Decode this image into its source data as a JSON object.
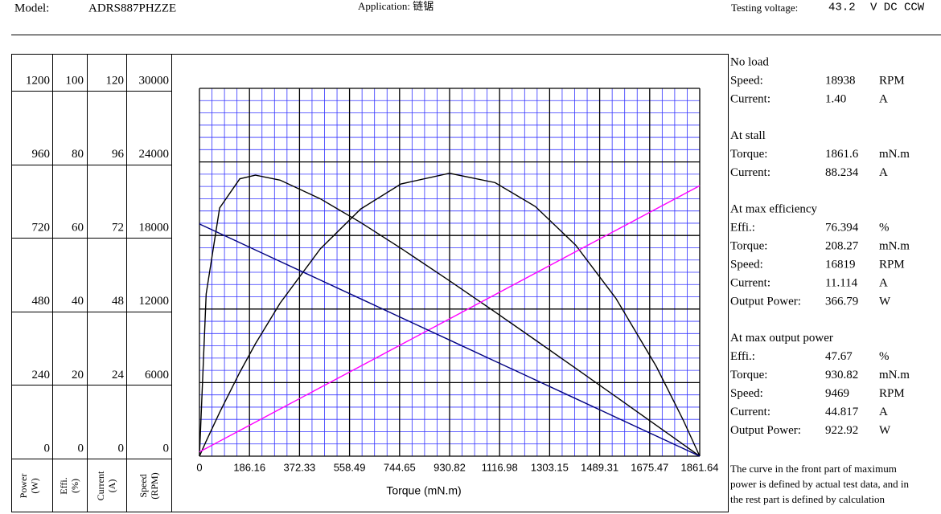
{
  "header": {
    "model_label": "Model:",
    "model": "ADRS887PHZZE",
    "application": "Application: 链锯",
    "voltage_label": "Testing voltage:",
    "voltage": "43.2",
    "voltage_unit": "V DC CCW"
  },
  "chart_data": {
    "type": "line",
    "xlabel": "Torque (mN.m)",
    "xlim": [
      0,
      1861.64
    ],
    "xticks": [
      0,
      186.16,
      372.33,
      558.49,
      744.65,
      930.82,
      1116.98,
      1303.15,
      1489.31,
      1675.47,
      1861.64
    ],
    "axes": [
      {
        "title": "Power",
        "unit": "(W)",
        "ylim": [
          0,
          1200
        ],
        "yticks": [
          0,
          240,
          480,
          720,
          960,
          1200
        ]
      },
      {
        "title": "Effi.",
        "unit": "(%)",
        "ylim": [
          0,
          100
        ],
        "yticks": [
          0,
          20,
          40,
          60,
          80,
          100
        ]
      },
      {
        "title": "Current",
        "unit": "(A)",
        "ylim": [
          0,
          120
        ],
        "yticks": [
          0,
          24,
          48,
          72,
          96,
          120
        ]
      },
      {
        "title": "Speed",
        "unit": "(RPM)",
        "ylim": [
          0,
          30000
        ],
        "yticks": [
          0,
          6000,
          12000,
          18000,
          24000,
          30000
        ]
      }
    ],
    "x": [
      0,
      25,
      75,
      150,
      208.27,
      300,
      450,
      600,
      750,
      930.82,
      1100,
      1250,
      1400,
      1550,
      1700,
      1800,
      1861.64
    ],
    "series": [
      {
        "name": "Power",
        "axis": 0,
        "color": "#000000",
        "values": [
          0,
          48.91,
          142.75,
          273.51,
          366.79,
          499.08,
          676.71,
          806.41,
          888.17,
          922.92,
          892.51,
          814.47,
          688.51,
          514.59,
          292.74,
          118.21,
          0
        ]
      },
      {
        "name": "Efficiency",
        "axis": 1,
        "color": "#000000",
        "values": [
          0,
          44.12,
          67.47,
          75.4,
          76.394,
          75.05,
          69.96,
          63.52,
          56.51,
          47.67,
          39.2,
          31.58,
          23.89,
          16.16,
          8.4,
          3.21,
          0
        ]
      },
      {
        "name": "Current",
        "axis": 2,
        "color": "#ff00ff",
        "values": [
          1.4,
          2.566,
          4.898,
          8.397,
          11.114,
          15.393,
          22.39,
          29.387,
          36.383,
          44.817,
          52.71,
          59.706,
          66.703,
          73.7,
          80.696,
          85.361,
          88.234
        ]
      },
      {
        "name": "Speed",
        "axis": 3,
        "color": "#000080",
        "values": [
          18938,
          18683.7,
          18175,
          17412.1,
          16819,
          15886.2,
          14360.3,
          12834.4,
          11308.5,
          9469,
          7748,
          6222.1,
          4696.2,
          3170.3,
          1644.4,
          627.1,
          0
        ]
      }
    ]
  },
  "info": {
    "sections": [
      {
        "title": "No load",
        "rows": [
          [
            "Speed:",
            "18938",
            "RPM"
          ],
          [
            "Current:",
            "1.40",
            "A"
          ]
        ]
      },
      {
        "title": "At stall",
        "rows": [
          [
            "Torque:",
            "1861.6",
            "mN.m"
          ],
          [
            "Current:",
            "88.234",
            "A"
          ]
        ]
      },
      {
        "title": "At max efficiency",
        "rows": [
          [
            "Effi.:",
            "76.394",
            "%"
          ],
          [
            "Torque:",
            "208.27",
            "mN.m"
          ],
          [
            "Speed:",
            "16819",
            "RPM"
          ],
          [
            "Current:",
            "11.114",
            "A"
          ],
          [
            "Output Power:",
            "366.79",
            "W"
          ]
        ]
      },
      {
        "title": "At max output power",
        "rows": [
          [
            "Effi.:",
            "47.67",
            "%"
          ],
          [
            "Torque:",
            "930.82",
            "mN.m"
          ],
          [
            "Speed:",
            "9469",
            "RPM"
          ],
          [
            "Current:",
            "44.817",
            "A"
          ],
          [
            "Output Power:",
            "922.92",
            "W"
          ]
        ]
      }
    ],
    "note": [
      "The curve in the front part of maximum",
      "power is defined by actual test data, and in",
      "the rest part is defined by calculation"
    ]
  }
}
